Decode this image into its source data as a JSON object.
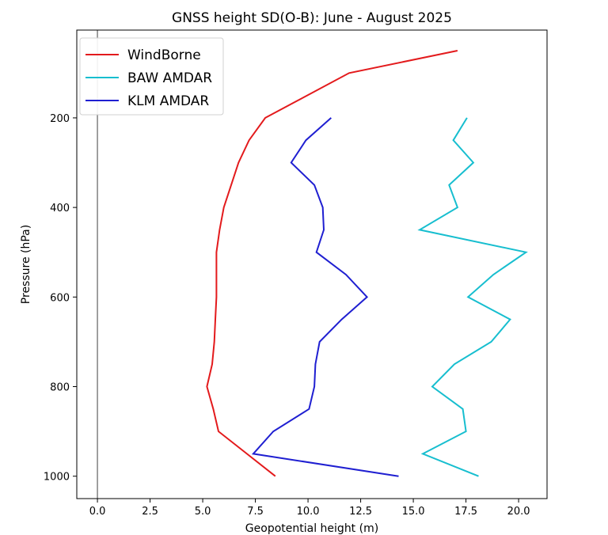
{
  "chart_data": {
    "type": "line",
    "title": "GNSS height SD(O-B): June - August 2025",
    "xlabel": "Geopotential height (m)",
    "ylabel": "Pressure (hPa)",
    "xlim": [
      -0.98,
      21.35
    ],
    "ylim": [
      1050,
      4
    ],
    "y_inverted": true,
    "grid": false,
    "legend_placement": "top-left",
    "xticks": [
      0.0,
      2.5,
      5.0,
      7.5,
      10.0,
      12.5,
      15.0,
      17.5,
      20.0
    ],
    "xtick_labels": [
      "0.0",
      "2.5",
      "5.0",
      "7.5",
      "10.0",
      "12.5",
      "15.0",
      "17.5",
      "20.0"
    ],
    "yticks": [
      200,
      400,
      600,
      800,
      1000
    ],
    "ytick_labels": [
      "200",
      "400",
      "600",
      "800",
      "1000"
    ],
    "reference_line": {
      "x": 0,
      "color": "#808080"
    },
    "series": [
      {
        "name": "WindBorne",
        "color": "#e31a1c",
        "pressure": [
          50,
          100,
          200,
          250,
          300,
          350,
          400,
          450,
          500,
          550,
          600,
          650,
          700,
          750,
          800,
          850,
          900,
          950,
          1000
        ],
        "values": [
          17.1,
          11.95,
          7.97,
          7.2,
          6.7,
          6.35,
          6.0,
          5.8,
          5.65,
          5.65,
          5.65,
          5.6,
          5.55,
          5.45,
          5.2,
          5.5,
          5.75,
          7.1,
          8.45
        ]
      },
      {
        "name": "BAW AMDAR",
        "color": "#17becf",
        "pressure": [
          200,
          250,
          300,
          350,
          400,
          450,
          500,
          550,
          600,
          650,
          700,
          750,
          800,
          850,
          900,
          950,
          1000
        ],
        "values": [
          17.55,
          16.9,
          17.85,
          16.7,
          17.1,
          15.3,
          20.35,
          18.8,
          17.6,
          19.6,
          18.7,
          16.95,
          15.9,
          17.35,
          17.5,
          15.45,
          18.1
        ]
      },
      {
        "name": "KLM AMDAR",
        "color": "#1f1fd1",
        "pressure": [
          200,
          250,
          300,
          350,
          400,
          450,
          500,
          550,
          600,
          650,
          700,
          750,
          800,
          850,
          900,
          950,
          1000
        ],
        "values": [
          11.1,
          9.9,
          9.2,
          10.3,
          10.7,
          10.75,
          10.4,
          11.8,
          12.8,
          11.6,
          10.55,
          10.35,
          10.3,
          10.05,
          8.35,
          7.4,
          14.3
        ]
      }
    ]
  }
}
